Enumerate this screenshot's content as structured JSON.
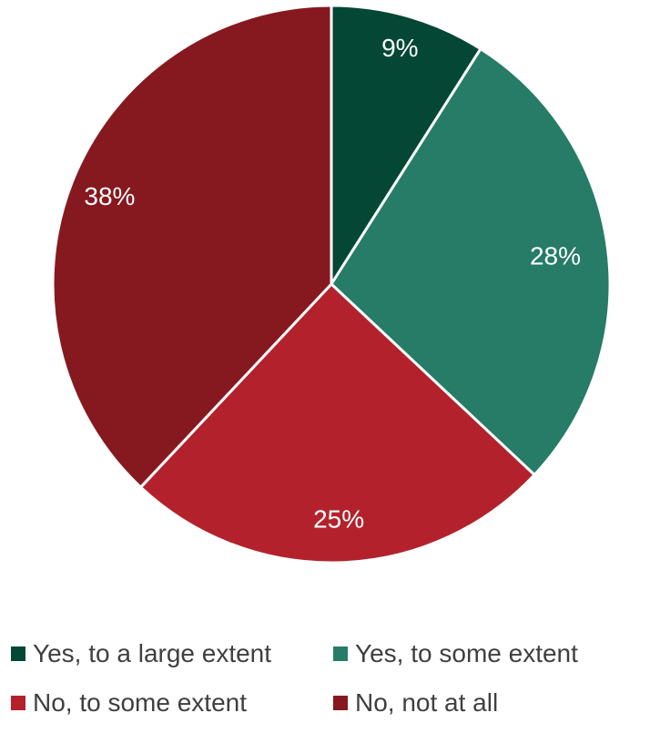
{
  "chart_data": {
    "type": "pie",
    "title": "",
    "categories": [
      "Yes, to a large extent",
      "Yes, to some extent",
      "No, to some extent",
      "No, not at all"
    ],
    "values": [
      9,
      28,
      25,
      38
    ],
    "labels": [
      "9%",
      "28%",
      "25%",
      "38%"
    ],
    "colors": [
      "#044734",
      "#267c66",
      "#b3222c",
      "#86191f"
    ],
    "legend_position": "bottom",
    "start_angle": "12 o'clock",
    "direction": "clockwise"
  },
  "legend": {
    "items": [
      {
        "label": "Yes, to a large extent",
        "color": "#044734"
      },
      {
        "label": "Yes, to some extent",
        "color": "#267c66"
      },
      {
        "label": "No, to some extent",
        "color": "#b3222c"
      },
      {
        "label": "No, not at all",
        "color": "#86191f"
      }
    ]
  }
}
